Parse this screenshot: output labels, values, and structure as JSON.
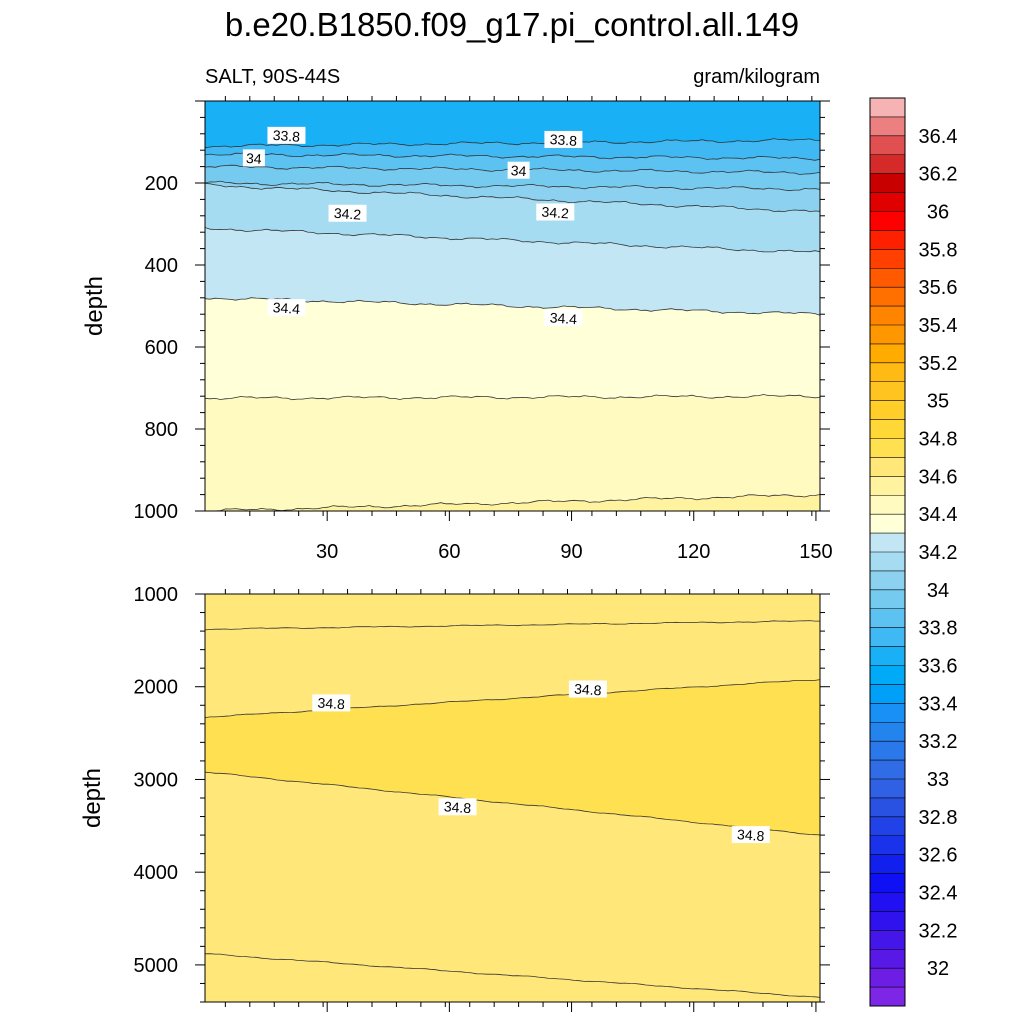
{
  "title": "b.e20.B1850.f09_g17.pi_control.all.149",
  "left_string": "SALT, 90S-44S",
  "right_string": "gram/kilogram",
  "chart_data": [
    {
      "type": "contour",
      "panel": "upper",
      "ylabel": "depth",
      "xlim": [
        0,
        151
      ],
      "ylim": [
        0,
        1000
      ],
      "y_reversed": true,
      "x_ticks": [
        "30",
        "60",
        "90",
        "120",
        "150"
      ],
      "y_ticks": [
        "200",
        "400",
        "600",
        "800",
        "1000"
      ],
      "contour_levels": [
        {
          "value": 33.8,
          "depth_at_x0": 110,
          "depth_at_xmax": 95
        },
        {
          "value": 33.9,
          "depth_at_x0": 130,
          "depth_at_xmax": 140
        },
        {
          "value": 34.0,
          "depth_at_x0": 160,
          "depth_at_xmax": 175
        },
        {
          "value": 34.1,
          "depth_at_x0": 200,
          "depth_at_xmax": 215
        },
        {
          "value": 34.2,
          "depth_at_x0": 205,
          "depth_at_xmax": 270
        },
        {
          "value": 34.3,
          "depth_at_x0": 310,
          "depth_at_xmax": 370
        },
        {
          "value": 34.4,
          "depth_at_x0": 480,
          "depth_at_xmax": 520
        },
        {
          "value": 34.5,
          "depth_at_x0": 725,
          "depth_at_xmax": 720
        },
        {
          "value": 34.6,
          "depth_at_x0": 1000,
          "depth_at_xmax": 960
        }
      ],
      "contour_labels": [
        {
          "text": "33.8",
          "x": 20,
          "depth": 85
        },
        {
          "text": "33.8",
          "x": 88,
          "depth": 95
        },
        {
          "text": "34",
          "x": 12,
          "depth": 140
        },
        {
          "text": "34",
          "x": 77,
          "depth": 170
        },
        {
          "text": "34.2",
          "x": 35,
          "depth": 275
        },
        {
          "text": "34.2",
          "x": 86,
          "depth": 272
        },
        {
          "text": "34.4",
          "x": 20,
          "depth": 505
        },
        {
          "text": "34.4",
          "x": 88,
          "depth": 530
        }
      ]
    },
    {
      "type": "contour",
      "panel": "lower",
      "ylabel": "depth",
      "xlim": [
        0,
        151
      ],
      "ylim": [
        1000,
        5400
      ],
      "y_reversed": true,
      "y_ticks": [
        "1000",
        "2000",
        "3000",
        "4000",
        "5000"
      ],
      "contour_levels": [
        {
          "value": 34.7,
          "depth_at_x0": 1380,
          "depth_at_xmax": 1290
        },
        {
          "value": 34.8,
          "depth_at_x0": 2330,
          "depth_at_xmax": 1920
        },
        {
          "value": 34.8,
          "depth_at_x0": 2920,
          "depth_at_xmax": 3600
        },
        {
          "value": 34.7,
          "depth_at_x0": 4880,
          "depth_at_xmax": 5350
        }
      ],
      "contour_labels": [
        {
          "text": "34.8",
          "x": 31,
          "depth": 2180
        },
        {
          "text": "34.8",
          "x": 94,
          "depth": 2030
        },
        {
          "text": "34.8",
          "x": 62,
          "depth": 3300
        },
        {
          "text": "34.8",
          "x": 134,
          "depth": 3600
        }
      ]
    }
  ],
  "colorbar": {
    "labels": [
      "36.4",
      "36.2",
      "36",
      "35.8",
      "35.6",
      "35.4",
      "35.2",
      "35",
      "34.8",
      "34.6",
      "34.4",
      "34.2",
      "34",
      "33.8",
      "33.6",
      "33.4",
      "33.2",
      "33",
      "32.8",
      "32.6",
      "32.4",
      "32.2",
      "32"
    ],
    "colors": [
      "#f5b3b3",
      "#ec8080",
      "#e05050",
      "#d42a2a",
      "#c80000",
      "#e00000",
      "#ff0000",
      "#ff2000",
      "#ff4000",
      "#ff5a00",
      "#ff7000",
      "#ff8400",
      "#ff9800",
      "#ffab00",
      "#ffba14",
      "#ffc420",
      "#ffce28",
      "#ffd838",
      "#ffe050",
      "#ffe77a",
      "#fff3a0",
      "#fffac0",
      "#ffffd8",
      "#c3e6f5",
      "#a6dcf2",
      "#8cd2f0",
      "#75caf0",
      "#5cc2f2",
      "#3fb8f4",
      "#1ab0f5",
      "#00aaf6",
      "#009ff8",
      "#1890f5",
      "#2484ee",
      "#2a78ea",
      "#306ce6",
      "#3060e4",
      "#2a52e2",
      "#2042e6",
      "#1a32ea",
      "#1220ee",
      "#1010f5",
      "#2010f2",
      "#3012ee",
      "#4416ea",
      "#5818e6",
      "#6c1ee4",
      "#7e26e6"
    ]
  }
}
